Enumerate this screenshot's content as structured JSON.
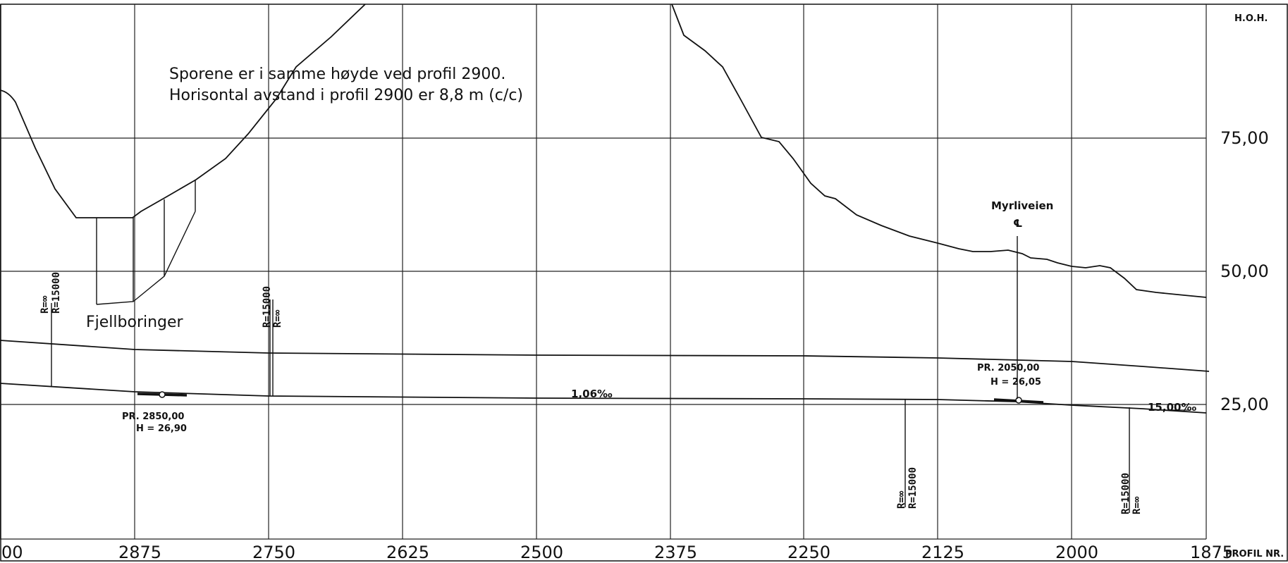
{
  "header": {
    "elevation_label": "H.O.H.",
    "profile_label": "PROFIL NR."
  },
  "notes": {
    "line1": "Sporene er i samme høyde ved profil 2900.",
    "line2": "Horisontal avstand i profil 2900 er  8,8 m (c/c)"
  },
  "x_axis": {
    "ticks": [
      "00",
      "2875",
      "2750",
      "2625",
      "2500",
      "2375",
      "2250",
      "2125",
      "2000",
      "1875"
    ]
  },
  "y_axis": {
    "ticks": [
      "75,00",
      "50,00",
      "25,00"
    ]
  },
  "labels": {
    "fjellboringer": "Fjellboringer",
    "myrliveien": "Myrliveien",
    "centerline_symbol": "℄",
    "grade_main": "1,06‰",
    "grade_right": "15,00‰"
  },
  "vertical_points": {
    "pvi_left_name": "PR. 2850,00",
    "pvi_left_h": "H = 26,90",
    "pvi_right_name": "PR. 2050,00",
    "pvi_right_h": "H = 26,05"
  },
  "curve_marks": {
    "m1_a": "R=∞",
    "m1_b": "R=15000",
    "m2_a": "R=15000",
    "m2_b": "R=∞",
    "m3_a": "R=∞",
    "m3_b": "R=15000",
    "m4_a": "R=15000",
    "m4_b": "R=∞"
  }
}
